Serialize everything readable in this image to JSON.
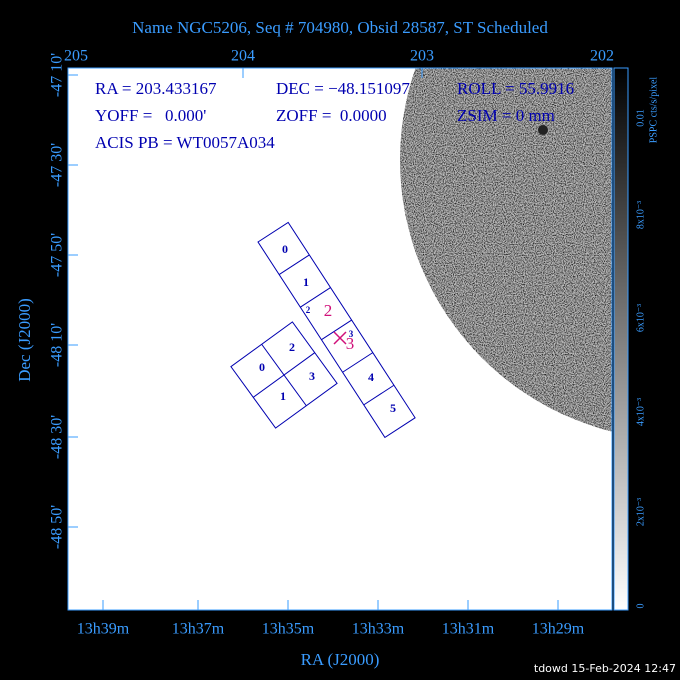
{
  "title": "Name NGC5206, Seq # 704980, Obsid 28587, ST Scheduled",
  "top_axis": {
    "labels": [
      "205",
      "204",
      "203",
      "202"
    ]
  },
  "left_axis": {
    "title": "Dec (J2000)",
    "labels": [
      "-47 10'",
      "-47 30'",
      "-47 50'",
      "-48 10'",
      "-48 30'",
      "-48 50'"
    ]
  },
  "bottom_axis": {
    "title": "RA (J2000)",
    "labels": [
      "13h39m",
      "13h37m",
      "13h35m",
      "13h33m",
      "13h31m",
      "13h29m"
    ]
  },
  "info": {
    "ra": "RA = 203.433167",
    "dec": "DEC = −48.151097",
    "roll": "ROLL = 55.9916",
    "yoff": "YOFF =   0.000'",
    "zoff": "ZOFF =  0.0000",
    "zsim": "ZSIM = 0 mm",
    "acis_pb": "ACIS PB = WT0057A034"
  },
  "s_array": {
    "labels": [
      "0",
      "1",
      "2",
      "3",
      "4",
      "5"
    ]
  },
  "i_array": {
    "labels": [
      "0",
      "2",
      "1",
      "3"
    ]
  },
  "aimpoint": {
    "labels": [
      "2",
      "3"
    ]
  },
  "colorbar": {
    "title": "PSPC cts/s/pixel",
    "labels": [
      "0.01",
      "8x10⁻³",
      "6x10⁻³",
      "4x10⁻³",
      "2x10⁻³",
      "0"
    ]
  },
  "footer": "tdowd 15-Feb-2024 12:47"
}
